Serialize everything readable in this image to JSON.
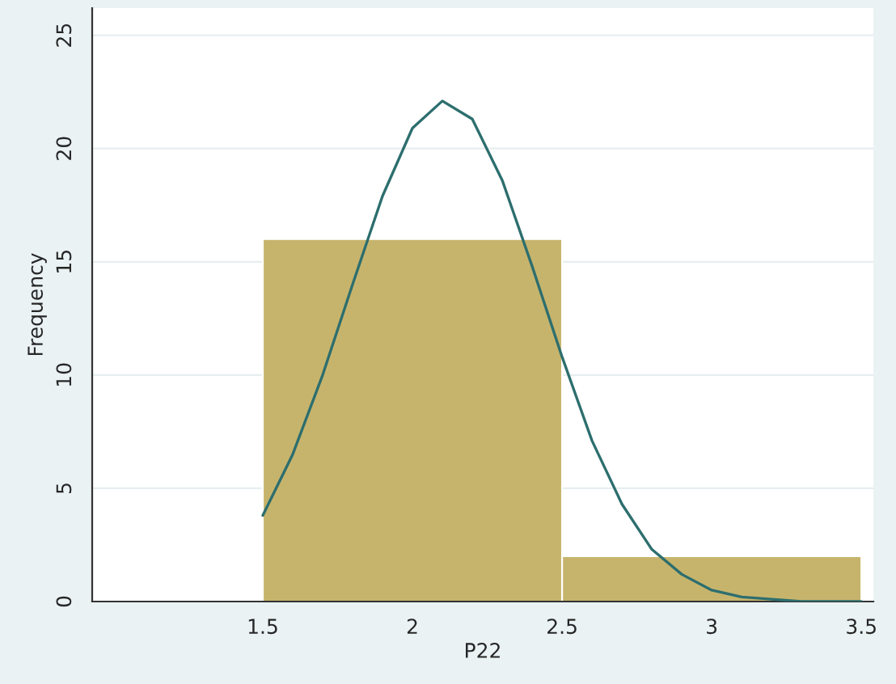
{
  "chart_data": {
    "type": "histogram",
    "xlabel": "P22",
    "ylabel": "Frequency",
    "bins": [
      1.5,
      2.5,
      3.5
    ],
    "values": [
      16,
      2
    ],
    "color": "#c7b46c",
    "series": [
      {
        "type": "line",
        "color": "#2d6e6e",
        "x": [
          1.5,
          1.6,
          1.7,
          1.8,
          1.9,
          2.0,
          2.1,
          2.2,
          2.3,
          2.4,
          2.5,
          2.6,
          2.7,
          2.8,
          2.9,
          3.0,
          3.1,
          3.2,
          3.3,
          3.4,
          3.5
        ],
        "values": [
          3.8,
          6.5,
          10,
          14,
          17.9,
          20.9,
          22.1,
          21.3,
          18.6,
          14.8,
          10.8,
          7.1,
          4.3,
          2.3,
          1.2,
          0.5,
          0.2,
          0.1,
          0,
          0,
          0
        ]
      }
    ],
    "xlim": [
      0.93,
      3.54
    ],
    "ylim": [
      0,
      26.2
    ],
    "xticks": [
      1.5,
      2,
      2.5,
      3,
      3.5
    ],
    "yticks": [
      0,
      5,
      10,
      15,
      20,
      25
    ],
    "grid": "y",
    "marker": "none",
    "line_style": "solid"
  }
}
